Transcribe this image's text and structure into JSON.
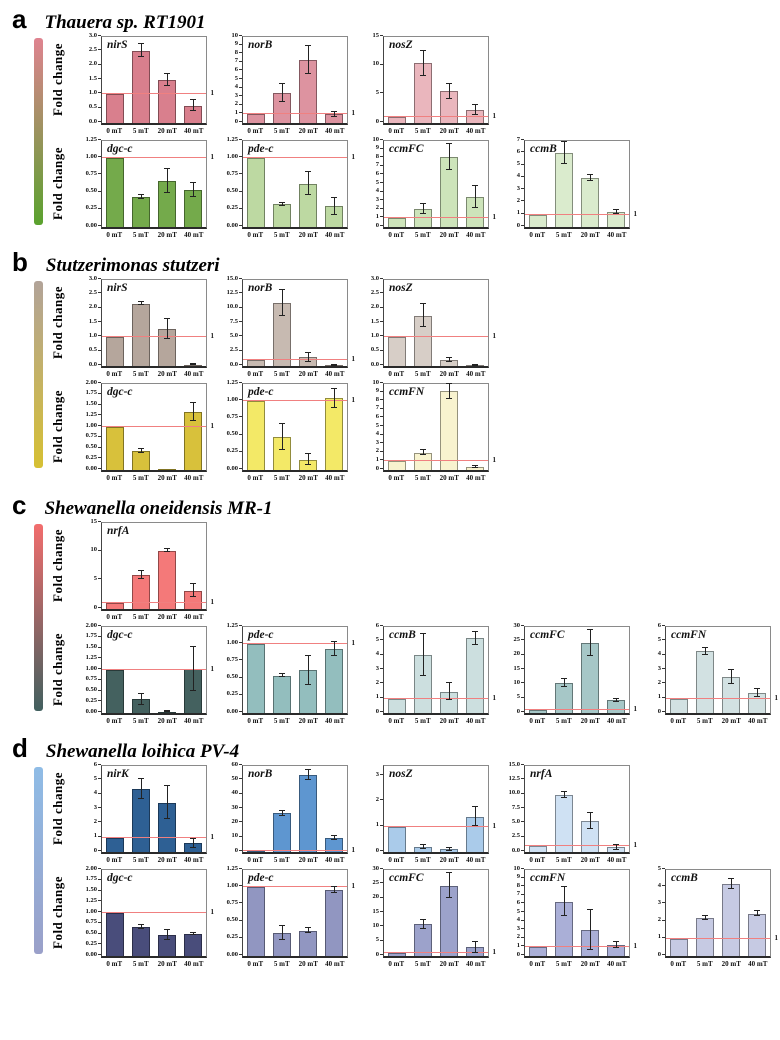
{
  "figure": {
    "categories": [
      "0 mT",
      "5 mT",
      "20 mT",
      "40 mT"
    ],
    "ylabel": "Fold change",
    "ref_line": {
      "value": 1,
      "label": "1",
      "color": "#f08080"
    }
  },
  "chart_data": [
    {
      "panel": "a",
      "title": "Thauera sp. RT1901",
      "gradient": [
        "#df8390",
        "#5aa22e"
      ],
      "rows": [
        {
          "ylabel": "Fold change",
          "charts": [
            {
              "type": "bar",
              "gene": "nirS",
              "color": "#d97f8d",
              "ylim": [
                0,
                3
              ],
              "yticks": [
                "0.0",
                "0.5",
                "1.0",
                "1.5",
                "2.0",
                "2.5",
                "3.0"
              ],
              "values": [
                1.0,
                2.52,
                1.51,
                0.61
              ],
              "errors": [
                0,
                0.23,
                0.21,
                0.18
              ]
            },
            {
              "type": "bar",
              "gene": "norB",
              "color": "#dd93a0",
              "ylim": [
                0,
                10
              ],
              "yticks": [
                "0",
                "1",
                "2",
                "3",
                "4",
                "5",
                "6",
                "7",
                "8",
                "9",
                "10"
              ],
              "values": [
                1,
                3.5,
                7.3,
                1.0
              ],
              "errors": [
                0,
                1.0,
                1.6,
                0.3
              ]
            },
            {
              "type": "bar",
              "gene": "nosZ",
              "color": "#eab6bd",
              "ylim": [
                0,
                15
              ],
              "yticks": [
                "0",
                "5",
                "10",
                "15"
              ],
              "values": [
                1,
                10.4,
                5.5,
                2.3
              ],
              "errors": [
                0,
                2.2,
                1.3,
                0.9
              ]
            }
          ]
        },
        {
          "ylabel": "Fold change",
          "charts": [
            {
              "type": "bar",
              "gene": "dgc-c",
              "color": "#74aa4b",
              "ylim": [
                0,
                1.25
              ],
              "yticks": [
                "0.00",
                "0.25",
                "0.50",
                "0.75",
                "1.00",
                "1.25"
              ],
              "values": [
                1.0,
                0.43,
                0.67,
                0.54
              ],
              "errors": [
                0,
                0.03,
                0.18,
                0.1
              ]
            },
            {
              "type": "bar",
              "gene": "pde-c",
              "color": "#bdd9a2",
              "ylim": [
                0,
                1.25
              ],
              "yticks": [
                "0.00",
                "0.25",
                "0.50",
                "0.75",
                "1.00",
                "1.25"
              ],
              "values": [
                1.0,
                0.33,
                0.63,
                0.3
              ],
              "errors": [
                0,
                0.02,
                0.17,
                0.12
              ]
            },
            {
              "type": "bar",
              "gene": "ccmFC",
              "color": "#cde4ba",
              "ylim": [
                0,
                10
              ],
              "yticks": [
                "0",
                "1",
                "2",
                "3",
                "4",
                "5",
                "6",
                "7",
                "8",
                "9",
                "10"
              ],
              "values": [
                1,
                2.1,
                8.1,
                3.5
              ],
              "errors": [
                0,
                0.6,
                1.5,
                1.3
              ]
            },
            {
              "type": "bar",
              "gene": "ccmB",
              "color": "#daebcd",
              "ylim": [
                0,
                7
              ],
              "yticks": [
                "0",
                "1",
                "2",
                "3",
                "4",
                "5",
                "6",
                "7"
              ],
              "values": [
                1,
                6.0,
                4.0,
                1.2
              ],
              "errors": [
                0,
                0.9,
                0.25,
                0.15
              ]
            }
          ]
        }
      ]
    },
    {
      "panel": "b",
      "title": "Stutzerimonas stutzeri",
      "gradient": [
        "#b2a399",
        "#d6c033"
      ],
      "rows": [
        {
          "ylabel": "Fold change",
          "charts": [
            {
              "type": "bar",
              "gene": "nirS",
              "color": "#b5a69c",
              "ylim": [
                0,
                3
              ],
              "yticks": [
                "0.0",
                "0.5",
                "1.0",
                "1.5",
                "2.0",
                "2.5",
                "3.0"
              ],
              "values": [
                1.0,
                2.18,
                1.3,
                0.05
              ],
              "errors": [
                0,
                0.05,
                0.35,
                0.02
              ]
            },
            {
              "type": "bar",
              "gene": "norB",
              "color": "#c7bab1",
              "ylim": [
                0,
                15
              ],
              "yticks": [
                "0.0",
                "2.5",
                "5.0",
                "7.5",
                "10.0",
                "12.5",
                "15.0"
              ],
              "values": [
                1,
                11,
                1.5,
                0.1
              ],
              "errors": [
                0,
                2.3,
                0.8,
                0.05
              ]
            },
            {
              "type": "bar",
              "gene": "nosZ",
              "color": "#d7cec7",
              "ylim": [
                0,
                3
              ],
              "yticks": [
                "0.0",
                "0.5",
                "1.0",
                "1.5",
                "2.0",
                "2.5",
                "3.0"
              ],
              "values": [
                1.0,
                1.75,
                0.22,
                0.03
              ],
              "errors": [
                0,
                0.4,
                0.07,
                0.02
              ]
            }
          ]
        },
        {
          "ylabel": "Fold change",
          "charts": [
            {
              "type": "bar",
              "gene": "dgc-c",
              "color": "#d8c13b",
              "ylim": [
                0,
                2
              ],
              "yticks": [
                "0.00",
                "0.25",
                "0.50",
                "0.75",
                "1.00",
                "1.25",
                "1.50",
                "1.75",
                "2.00"
              ],
              "values": [
                1.0,
                0.44,
                0.01,
                1.34
              ],
              "errors": [
                0,
                0.05,
                0,
                0.21
              ]
            },
            {
              "type": "bar",
              "gene": "pde-c",
              "color": "#f3e967",
              "ylim": [
                0,
                1.25
              ],
              "yticks": [
                "0.00",
                "0.25",
                "0.50",
                "0.75",
                "1.00",
                "1.25"
              ],
              "values": [
                1.0,
                0.48,
                0.15,
                1.04
              ],
              "errors": [
                0,
                0.19,
                0.08,
                0.14
              ]
            },
            {
              "type": "bar",
              "gene": "ccmFN",
              "color": "#f8f3cf",
              "ylim": [
                0,
                10
              ],
              "yticks": [
                "0",
                "1",
                "2",
                "3",
                "4",
                "5",
                "6",
                "7",
                "8",
                "9",
                "10"
              ],
              "values": [
                1,
                2.0,
                9.2,
                0.4
              ],
              "errors": [
                0,
                0.3,
                0.9,
                0.12
              ]
            }
          ]
        }
      ]
    },
    {
      "panel": "c",
      "title": "Shewanella oneidensis MR-1",
      "gradient": [
        "#f26d6d",
        "#42605f"
      ],
      "rows": [
        {
          "ylabel": "Fold change",
          "charts": [
            {
              "type": "bar",
              "gene": "nrfA",
              "color": "#f47979",
              "ylim": [
                0,
                15
              ],
              "yticks": [
                "0",
                "5",
                "10",
                "15"
              ],
              "values": [
                1,
                6.0,
                10.2,
                3.2
              ],
              "errors": [
                0,
                0.7,
                0.3,
                1.1
              ]
            }
          ]
        },
        {
          "ylabel": "Fold change",
          "charts": [
            {
              "type": "bar",
              "gene": "dgc-c",
              "color": "#44615f",
              "ylim": [
                0,
                2
              ],
              "yticks": [
                "0.00",
                "0.25",
                "0.50",
                "0.75",
                "1.00",
                "1.25",
                "1.50",
                "1.75",
                "2.00"
              ],
              "values": [
                1.0,
                0.32,
                0.03,
                1.02
              ],
              "errors": [
                0,
                0.13,
                0.01,
                0.51
              ]
            },
            {
              "type": "bar",
              "gene": "pde-c",
              "color": "#93bebe",
              "ylim": [
                0,
                1.25
              ],
              "yticks": [
                "0.00",
                "0.25",
                "0.50",
                "0.75",
                "1.00",
                "1.25"
              ],
              "values": [
                1.0,
                0.54,
                0.62,
                0.93
              ],
              "errors": [
                0,
                0.02,
                0.21,
                0.1
              ]
            },
            {
              "type": "bar",
              "gene": "ccmB",
              "color": "#ccdfdf",
              "ylim": [
                0,
                6
              ],
              "yticks": [
                "0",
                "1",
                "2",
                "3",
                "4",
                "5",
                "6"
              ],
              "values": [
                1,
                4.05,
                1.5,
                5.2
              ],
              "errors": [
                0,
                1.45,
                0.58,
                0.45
              ]
            },
            {
              "type": "bar",
              "gene": "ccmFC",
              "color": "#a6c7c7",
              "ylim": [
                0,
                30
              ],
              "yticks": [
                "0",
                "5",
                "10",
                "15",
                "20",
                "25",
                "30"
              ],
              "values": [
                1,
                10.5,
                24.5,
                4.5
              ],
              "errors": [
                0,
                1.3,
                4.5,
                0.5
              ]
            },
            {
              "type": "bar",
              "gene": "ccmFN",
              "color": "#d2e1e2",
              "ylim": [
                0,
                6
              ],
              "yticks": [
                "0",
                "1",
                "2",
                "3",
                "4",
                "5",
                "6"
              ],
              "values": [
                1,
                4.3,
                2.5,
                1.4
              ],
              "errors": [
                0,
                0.25,
                0.5,
                0.3
              ]
            }
          ]
        }
      ]
    },
    {
      "panel": "d",
      "title": "Shewanella loihica PV-4",
      "gradient": [
        "#8fbce6",
        "#9aa0c9"
      ],
      "rows": [
        {
          "ylabel": "Fold change",
          "charts": [
            {
              "type": "bar",
              "gene": "nirK",
              "color": "#2e6094",
              "ylim": [
                0,
                6
              ],
              "yticks": [
                "0",
                "1",
                "2",
                "3",
                "4",
                "5",
                "6"
              ],
              "values": [
                1,
                4.4,
                3.45,
                0.6
              ],
              "errors": [
                0,
                0.72,
                1.17,
                0.3
              ]
            },
            {
              "type": "bar",
              "gene": "norB",
              "color": "#5e96d0",
              "ylim": [
                0,
                60
              ],
              "yticks": [
                "0",
                "10",
                "20",
                "30",
                "40",
                "50",
                "60"
              ],
              "values": [
                1,
                27,
                54,
                10
              ],
              "errors": [
                0,
                1.8,
                3.5,
                1.5
              ]
            },
            {
              "type": "bar",
              "gene": "nosZ",
              "color": "#aacbea",
              "ylim": [
                0,
                3.4
              ],
              "yticks": [
                "0",
                "1",
                "2",
                "3"
              ],
              "values": [
                1,
                0.2,
                0.1,
                1.4
              ],
              "errors": [
                0,
                0.07,
                0.06,
                0.37
              ]
            },
            {
              "type": "bar",
              "gene": "nrfA",
              "color": "#cfe1f3",
              "ylim": [
                0,
                15
              ],
              "yticks": [
                "0.0",
                "2.5",
                "5.0",
                "7.5",
                "10.0",
                "12.5",
                "15.0"
              ],
              "values": [
                1,
                10,
                5.4,
                0.8
              ],
              "errors": [
                0,
                0.5,
                1.4,
                0.4
              ]
            }
          ]
        },
        {
          "ylabel": "Fold change",
          "charts": [
            {
              "type": "bar",
              "gene": "dgc-c",
              "color": "#494d7b",
              "ylim": [
                0,
                2
              ],
              "yticks": [
                "0.00",
                "0.25",
                "0.50",
                "0.75",
                "1.00",
                "1.25",
                "1.50",
                "1.75",
                "2.00"
              ],
              "values": [
                1.0,
                0.68,
                0.49,
                0.51
              ],
              "errors": [
                0,
                0.05,
                0.12,
                0.03
              ]
            },
            {
              "type": "bar",
              "gene": "pde-c",
              "color": "#9196c1",
              "ylim": [
                0,
                1.25
              ],
              "yticks": [
                "0.00",
                "0.25",
                "0.50",
                "0.75",
                "1.00",
                "1.25"
              ],
              "values": [
                1.0,
                0.33,
                0.37,
                0.96
              ],
              "errors": [
                0,
                0.1,
                0.03,
                0.05
              ]
            },
            {
              "type": "bar",
              "gene": "ccmFC",
              "color": "#9ca2cb",
              "ylim": [
                0,
                30
              ],
              "yticks": [
                "0",
                "5",
                "10",
                "15",
                "20",
                "25",
                "30"
              ],
              "values": [
                1,
                11,
                24.5,
                3
              ],
              "errors": [
                0,
                1.5,
                4.3,
                2.0
              ]
            },
            {
              "type": "bar",
              "gene": "ccmFN",
              "color": "#aaafd7",
              "ylim": [
                0,
                10
              ],
              "yticks": [
                "0",
                "1",
                "2",
                "3",
                "4",
                "5",
                "6",
                "7",
                "8",
                "9",
                "10"
              ],
              "values": [
                1,
                6.3,
                3.0,
                1.3
              ],
              "errors": [
                0,
                1.7,
                2.3,
                0.35
              ]
            },
            {
              "type": "bar",
              "gene": "ccmB",
              "color": "#c6cae3",
              "ylim": [
                0,
                5
              ],
              "yticks": [
                "0",
                "1",
                "2",
                "3",
                "4",
                "5"
              ],
              "values": [
                1,
                2.2,
                4.2,
                2.45
              ],
              "errors": [
                0,
                0.12,
                0.3,
                0.15
              ]
            }
          ]
        }
      ]
    }
  ]
}
